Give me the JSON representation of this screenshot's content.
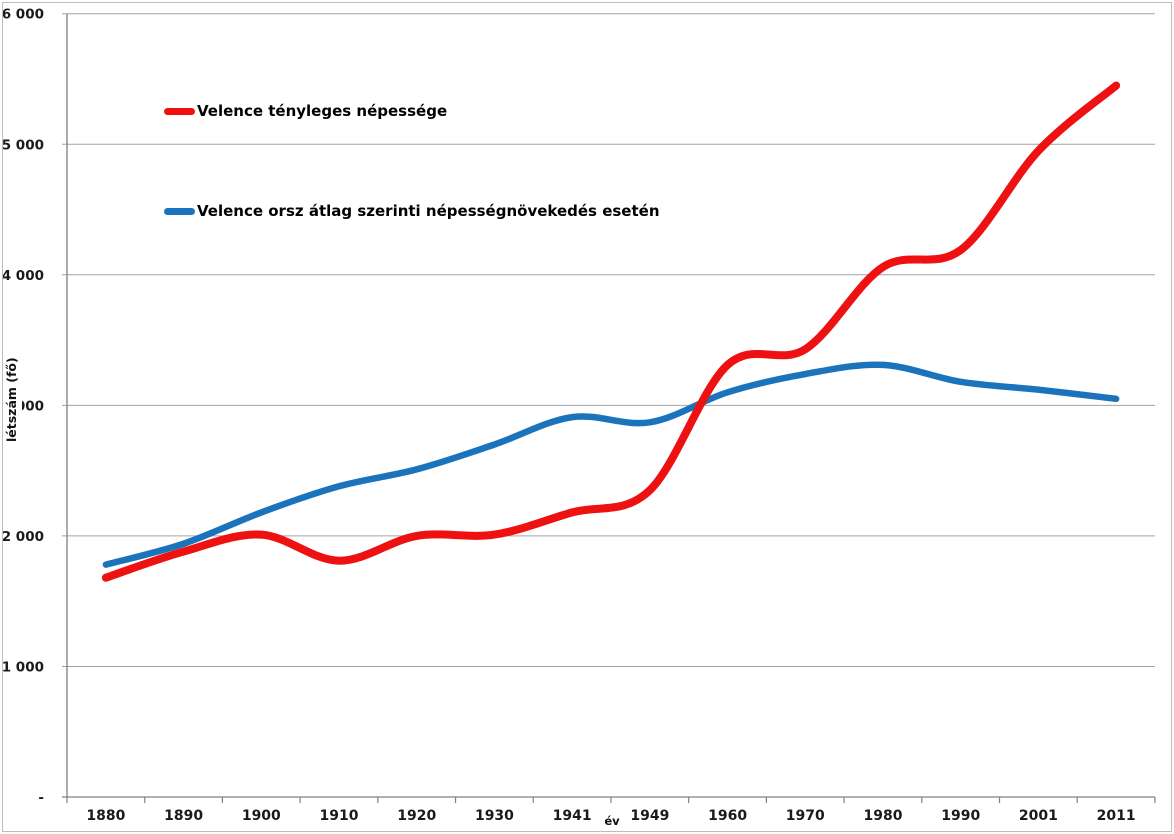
{
  "chart_data": {
    "type": "line",
    "title": "",
    "xlabel": "év",
    "ylabel": "létszám (fő)",
    "categories": [
      "1880",
      "1890",
      "1900",
      "1910",
      "1920",
      "1930",
      "1941",
      "1949",
      "1960",
      "1970",
      "1980",
      "1990",
      "2001",
      "2011"
    ],
    "series": [
      {
        "name": "Velence tényleges népessége",
        "color": "#ee1111",
        "line_width": 8,
        "values": [
          1680,
          1880,
          2010,
          1810,
          2000,
          2010,
          2180,
          2350,
          3310,
          3430,
          4060,
          4190,
          4950,
          5450
        ]
      },
      {
        "name": "Velence orsz átlag szerinti népességnövekedés esetén",
        "color": "#1b74bb",
        "line_width": 6.5,
        "values": [
          1780,
          1940,
          2180,
          2380,
          2510,
          2700,
          2910,
          2870,
          3100,
          3240,
          3310,
          3180,
          3120,
          3050
        ]
      }
    ],
    "ylim": [
      0,
      6000
    ],
    "ytick_interval": 1000,
    "ytick_labels_displayed": [
      "-",
      "1 000",
      "2 000",
      "000",
      "4 000",
      "5 000",
      "6 000"
    ],
    "grid": true,
    "legend_position": "inside-top-left",
    "line_style": "smooth"
  },
  "colors": {
    "gridline": "#a3a3a3",
    "axis": "#808080",
    "tick_text": "#1a1a1a",
    "background": "#ffffff",
    "border": "#bdbdbd"
  }
}
